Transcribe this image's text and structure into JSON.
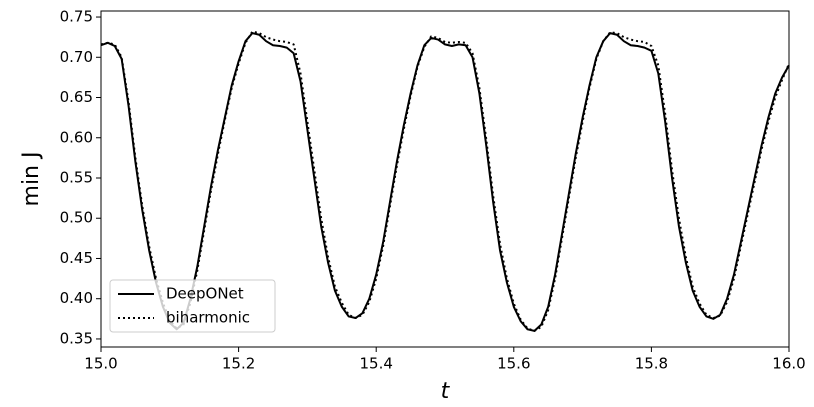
{
  "chart_data": {
    "type": "line",
    "xlabel": "t",
    "ylabel": "min J",
    "x": [
      15.0,
      15.01,
      15.02,
      15.03,
      15.04,
      15.05,
      15.06,
      15.07,
      15.08,
      15.09,
      15.1,
      15.11,
      15.12,
      15.13,
      15.14,
      15.15,
      15.16,
      15.17,
      15.18,
      15.19,
      15.2,
      15.21,
      15.22,
      15.23,
      15.24,
      15.25,
      15.26,
      15.27,
      15.28,
      15.29,
      15.3,
      15.31,
      15.32,
      15.33,
      15.34,
      15.35,
      15.36,
      15.37,
      15.38,
      15.39,
      15.4,
      15.41,
      15.42,
      15.43,
      15.44,
      15.45,
      15.46,
      15.47,
      15.48,
      15.49,
      15.5,
      15.51,
      15.52,
      15.53,
      15.54,
      15.55,
      15.56,
      15.57,
      15.58,
      15.59,
      15.6,
      15.61,
      15.62,
      15.63,
      15.64,
      15.65,
      15.66,
      15.67,
      15.68,
      15.69,
      15.7,
      15.71,
      15.72,
      15.73,
      15.74,
      15.75,
      15.76,
      15.77,
      15.78,
      15.79,
      15.8,
      15.81,
      15.82,
      15.83,
      15.84,
      15.85,
      15.86,
      15.87,
      15.88,
      15.89,
      15.9,
      15.91,
      15.92,
      15.93,
      15.94,
      15.95,
      15.96,
      15.97,
      15.98,
      15.99,
      16.0
    ],
    "series": [
      {
        "name": "DeepONet",
        "color": "#000000",
        "linestyle": "solid",
        "values": [
          0.715,
          0.718,
          0.714,
          0.698,
          0.64,
          0.57,
          0.51,
          0.46,
          0.42,
          0.39,
          0.37,
          0.362,
          0.37,
          0.4,
          0.44,
          0.49,
          0.54,
          0.585,
          0.625,
          0.665,
          0.695,
          0.72,
          0.73,
          0.728,
          0.72,
          0.715,
          0.714,
          0.712,
          0.705,
          0.67,
          0.61,
          0.55,
          0.49,
          0.445,
          0.41,
          0.39,
          0.378,
          0.376,
          0.382,
          0.4,
          0.43,
          0.47,
          0.52,
          0.57,
          0.615,
          0.655,
          0.69,
          0.715,
          0.724,
          0.722,
          0.716,
          0.714,
          0.716,
          0.715,
          0.7,
          0.655,
          0.59,
          0.52,
          0.46,
          0.42,
          0.39,
          0.372,
          0.362,
          0.36,
          0.368,
          0.39,
          0.43,
          0.48,
          0.53,
          0.58,
          0.625,
          0.665,
          0.7,
          0.72,
          0.73,
          0.728,
          0.72,
          0.715,
          0.714,
          0.712,
          0.708,
          0.68,
          0.62,
          0.55,
          0.49,
          0.445,
          0.41,
          0.39,
          0.378,
          0.375,
          0.38,
          0.4,
          0.43,
          0.47,
          0.51,
          0.55,
          0.59,
          0.625,
          0.655,
          0.675,
          0.69
        ]
      },
      {
        "name": "biharmonic",
        "color": "#000000",
        "linestyle": "dotted",
        "values": [
          0.716,
          0.718,
          0.716,
          0.7,
          0.645,
          0.575,
          0.515,
          0.465,
          0.425,
          0.395,
          0.373,
          0.363,
          0.368,
          0.395,
          0.435,
          0.485,
          0.535,
          0.58,
          0.622,
          0.662,
          0.692,
          0.718,
          0.732,
          0.73,
          0.725,
          0.722,
          0.72,
          0.719,
          0.716,
          0.68,
          0.62,
          0.56,
          0.5,
          0.452,
          0.415,
          0.395,
          0.38,
          0.376,
          0.38,
          0.396,
          0.425,
          0.465,
          0.515,
          0.565,
          0.61,
          0.652,
          0.688,
          0.713,
          0.726,
          0.724,
          0.719,
          0.718,
          0.719,
          0.718,
          0.705,
          0.662,
          0.598,
          0.528,
          0.468,
          0.425,
          0.394,
          0.374,
          0.363,
          0.36,
          0.365,
          0.386,
          0.425,
          0.475,
          0.525,
          0.575,
          0.62,
          0.662,
          0.698,
          0.72,
          0.731,
          0.73,
          0.725,
          0.722,
          0.72,
          0.719,
          0.714,
          0.69,
          0.63,
          0.56,
          0.5,
          0.452,
          0.415,
          0.394,
          0.38,
          0.376,
          0.379,
          0.396,
          0.425,
          0.465,
          0.505,
          0.545,
          0.585,
          0.62,
          0.65,
          0.672,
          0.692
        ]
      }
    ],
    "xlim": [
      15.0,
      16.0
    ],
    "xticks": [
      {
        "value": 15.0,
        "label": "15.0"
      },
      15.2,
      15.4,
      15.6,
      15.8,
      {
        "value": 16.0,
        "label": "16.0"
      }
    ],
    "ylim": [
      0.34,
      0.7575
    ],
    "yticks": [
      0.35,
      {
        "value": 0.4,
        "label": "0.40"
      },
      0.45,
      {
        "value": 0.5,
        "label": "0.50"
      },
      0.55,
      {
        "value": 0.6,
        "label": "0.60"
      },
      0.65,
      {
        "value": 0.7,
        "label": "0.70"
      },
      0.75
    ],
    "legend": "lower left"
  }
}
